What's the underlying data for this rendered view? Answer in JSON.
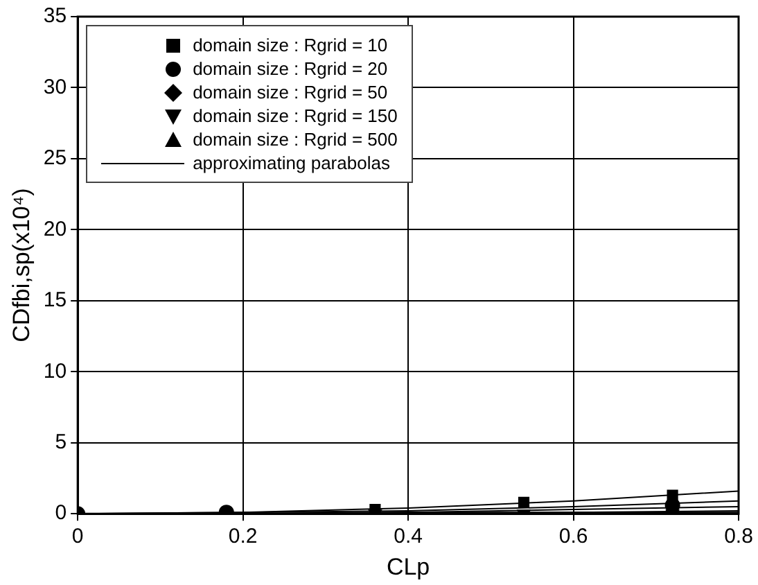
{
  "chart_data": {
    "type": "scatter",
    "xlabel": "CLp",
    "ylabel": "CDfbi,sp(x10⁴)",
    "xlim": [
      0,
      0.8
    ],
    "xticks": [
      0,
      0.2,
      0.4,
      0.6,
      0.8
    ],
    "ylim": [
      0,
      35
    ],
    "yticks": [
      0,
      5,
      10,
      15,
      20,
      25,
      30,
      35
    ],
    "grid": true,
    "legend": "top left",
    "series": [
      {
        "name": "domain size : Rgrid = 10",
        "color": "#000000",
        "marker": "square",
        "x": [
          null,
          null,
          0.36,
          0.54,
          0.72
        ],
        "values": [
          null,
          null,
          0.3,
          0.8,
          1.3
        ]
      },
      {
        "name": "domain size : Rgrid = 20",
        "color": "#000000",
        "marker": "circle",
        "x": [
          0,
          0.18,
          null,
          null,
          0.72
        ],
        "values": [
          0,
          0.1,
          null,
          null,
          0.6
        ]
      },
      {
        "name": "domain size : Rgrid = 50",
        "color": "#000000",
        "marker": "diamond"
      },
      {
        "name": "domain size : Rgrid = 150",
        "color": "#000000",
        "marker": "triangle-down",
        "x": [
          null,
          null,
          0.36,
          0.54,
          0.72
        ],
        "values": [
          null,
          null,
          0,
          0,
          0
        ]
      },
      {
        "name": "domain size : Rgrid = 500",
        "color": "#000000",
        "marker": "triangle"
      },
      {
        "name": "approximating parabolas",
        "type": "line",
        "color": "#000000",
        "marker": "none",
        "x": [
          0,
          0.2,
          0.4,
          0.6,
          0.8
        ],
        "values": [
          0,
          0.1,
          0.4,
          0.9,
          1.6
        ]
      },
      {
        "type": "line",
        "color": "#000000",
        "marker": "none",
        "x": [
          0,
          0.2,
          0.4,
          0.6,
          0.8
        ],
        "values": [
          0,
          0.1,
          0.2,
          0.5,
          0.9
        ]
      },
      {
        "type": "line",
        "color": "#000000",
        "marker": "none",
        "x": [
          0,
          0.2,
          0.4,
          0.6,
          0.8
        ],
        "values": [
          0,
          0,
          0.1,
          0.3,
          0.5
        ]
      },
      {
        "type": "line",
        "color": "#000000",
        "marker": "none",
        "x": [
          0,
          0.2,
          0.4,
          0.6,
          0.8
        ],
        "values": [
          0,
          0,
          0.1,
          0.1,
          0.2
        ]
      },
      {
        "type": "line",
        "color": "#000000",
        "marker": "none",
        "x": [
          0,
          0.2,
          0.4,
          0.6,
          0.8
        ],
        "values": [
          0,
          0,
          0,
          0.1,
          0.1
        ]
      }
    ]
  }
}
